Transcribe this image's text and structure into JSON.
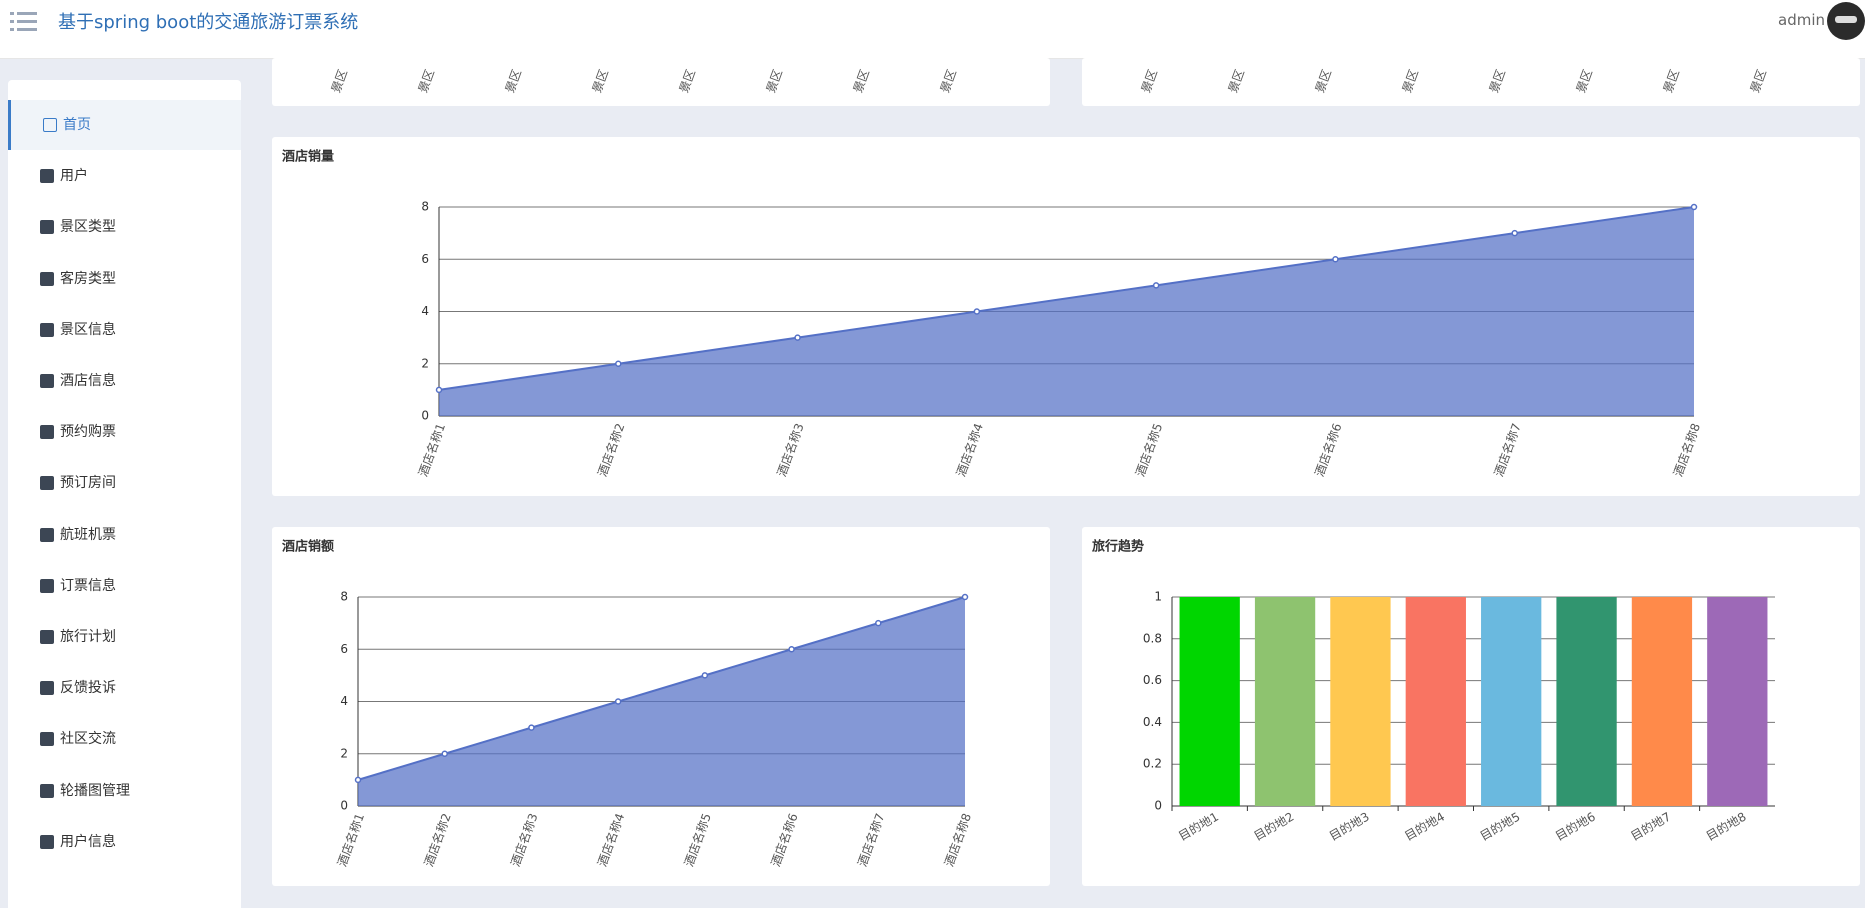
{
  "header": {
    "title": "基于spring boot的交通旅游订票系统",
    "user": "admin"
  },
  "menu": [
    "首页",
    "用户",
    "景区类型",
    "客房类型",
    "景区信息",
    "酒店信息",
    "预约购票",
    "预订房间",
    "航班机票",
    "订票信息",
    "旅行计划",
    "反馈投诉",
    "社区交流",
    "轮播图管理",
    "用户信息"
  ],
  "partial_cards": [
    {
      "labels": [
        "景区",
        "景区",
        "景区",
        "景区",
        "景区",
        "景区",
        "景区",
        "景区"
      ]
    },
    {
      "labels": [
        "景区",
        "景区",
        "景区",
        "景区",
        "景区",
        "景区",
        "景区",
        "景区"
      ]
    }
  ],
  "charts": [
    {
      "type": "area",
      "title": "酒店销量",
      "categories": [
        "酒店名称1",
        "酒店名称2",
        "酒店名称3",
        "酒店名称4",
        "酒店名称5",
        "酒店名称6",
        "酒店名称7",
        "酒店名称8"
      ],
      "values": [
        1,
        2,
        3,
        4,
        5,
        6,
        7,
        8
      ],
      "ylim": [
        0,
        8
      ],
      "yticks": [
        0,
        2,
        4,
        6,
        8
      ],
      "color": "#5470c6",
      "grid": true
    },
    {
      "type": "area",
      "title": "酒店销额",
      "categories": [
        "酒店名称1",
        "酒店名称2",
        "酒店名称3",
        "酒店名称4",
        "酒店名称5",
        "酒店名称6",
        "酒店名称7",
        "酒店名称8"
      ],
      "values": [
        1,
        2,
        3,
        4,
        5,
        6,
        7,
        8
      ],
      "ylim": [
        0,
        8
      ],
      "yticks": [
        0,
        2,
        4,
        6,
        8
      ],
      "color": "#5470c6",
      "grid": true
    },
    {
      "type": "bar",
      "title": "旅行趋势",
      "categories": [
        "目的地1",
        "目的地2",
        "目的地3",
        "目的地4",
        "目的地5",
        "目的地6",
        "目的地7",
        "目的地8"
      ],
      "values": [
        1,
        1,
        1,
        1,
        1,
        1,
        1,
        1
      ],
      "ylim": [
        0,
        1
      ],
      "yticks": [
        0,
        0.2,
        0.4,
        0.6,
        0.8,
        1
      ],
      "colors": [
        "#00d600",
        "#8ec36f",
        "#ffc850",
        "#f97462",
        "#6ab9df",
        "#31956f",
        "#ff8a4a",
        "#9d69b7"
      ],
      "grid": true
    }
  ]
}
